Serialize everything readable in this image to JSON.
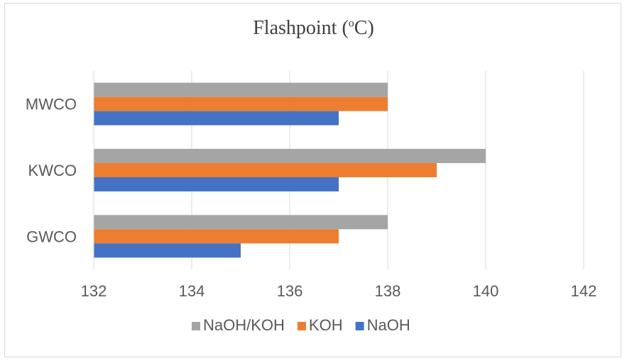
{
  "chart_data": {
    "type": "bar",
    "orientation": "horizontal",
    "title": "Flashpoint (",
    "title_sup": "o",
    "title_end": "C)",
    "categories": [
      "MWCO",
      "KWCO",
      "GWCO"
    ],
    "series": [
      {
        "name": "NaOH/KOH",
        "color": "#a5a5a5",
        "values": [
          138,
          140,
          138
        ]
      },
      {
        "name": "KOH",
        "color": "#ed7d31",
        "values": [
          138,
          139,
          137
        ]
      },
      {
        "name": "NaOH",
        "color": "#4472c4",
        "values": [
          137,
          137,
          135
        ]
      }
    ],
    "xlim": [
      132,
      142
    ],
    "xticks": [
      132,
      134,
      136,
      138,
      140,
      142
    ],
    "xlabel": "",
    "ylabel": "",
    "grid": true,
    "legend_position": "bottom"
  }
}
